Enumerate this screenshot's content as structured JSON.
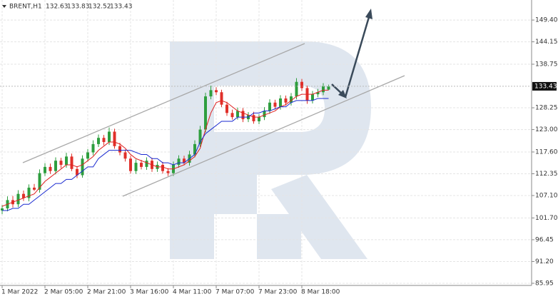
{
  "chart_data": {
    "type": "candlestick",
    "title": "BRENT,H1",
    "header_values": [
      132.63,
      133.83,
      132.52,
      133.43
    ],
    "categories": [
      "1 Mar 2022",
      null,
      null,
      null,
      null,
      null,
      null,
      null,
      "2 Mar 05:00",
      null,
      null,
      null,
      null,
      null,
      null,
      null,
      "2 Mar 21:00",
      null,
      null,
      null,
      null,
      null,
      null,
      null,
      "3 Mar 16:00",
      null,
      null,
      null,
      null,
      null,
      null,
      null,
      "4 Mar 11:00",
      null,
      null,
      null,
      null,
      null,
      null,
      null,
      "7 Mar 07:00",
      null,
      null,
      null,
      null,
      null,
      null,
      null,
      "7 Mar 23:00",
      null,
      null,
      null,
      null,
      null,
      null,
      null,
      "8 Mar 18:00",
      null,
      null,
      null,
      null,
      null
    ],
    "open": [
      103.5,
      104.0,
      106.0,
      105.0,
      107.5,
      106.5,
      109.0,
      108.5,
      112.5,
      114.0,
      113.0,
      115.5,
      114.5,
      116.5,
      113.5,
      112.0,
      116.0,
      117.5,
      119.5,
      121.0,
      120.0,
      122.5,
      119.0,
      117.5,
      116.0,
      113.0,
      115.0,
      114.0,
      115.5,
      113.5,
      114.5,
      113.0,
      112.5,
      114.5,
      116.0,
      115.0,
      117.0,
      119.5,
      123.0,
      131.0,
      132.5,
      132.0,
      129.0,
      127.0,
      126.0,
      127.5,
      125.5,
      126.5,
      125.0,
      126.0,
      127.5,
      129.5,
      128.5,
      130.5,
      129.5,
      131.0,
      134.5,
      133.0,
      130.0,
      131.5,
      132.0,
      132.63
    ],
    "high": [
      104.8,
      106.9,
      107.0,
      108.4,
      108.3,
      109.8,
      109.9,
      113.4,
      114.9,
      114.8,
      116.3,
      116.2,
      117.4,
      117.2,
      114.2,
      116.8,
      118.3,
      120.4,
      121.8,
      121.7,
      123.5,
      123.2,
      119.8,
      118.2,
      116.7,
      115.8,
      115.7,
      116.3,
      116.2,
      115.3,
      115.2,
      113.7,
      115.3,
      116.8,
      116.7,
      117.9,
      120.4,
      123.9,
      131.9,
      133.6,
      133.2,
      132.6,
      129.7,
      127.8,
      128.3,
      128.2,
      127.2,
      127.3,
      126.7,
      128.4,
      130.3,
      130.2,
      131.3,
      131.2,
      131.8,
      135.4,
      135.2,
      133.6,
      132.3,
      132.8,
      134.2,
      133.83
    ],
    "low": [
      102.6,
      103.3,
      104.2,
      104.3,
      105.8,
      105.7,
      108.2,
      107.8,
      111.8,
      112.3,
      112.2,
      113.7,
      113.8,
      113.0,
      111.3,
      111.4,
      115.3,
      116.8,
      118.8,
      119.2,
      119.3,
      118.4,
      116.8,
      115.3,
      112.4,
      112.3,
      113.4,
      113.3,
      112.8,
      112.8,
      112.4,
      111.8,
      111.8,
      113.8,
      114.4,
      114.3,
      116.3,
      118.8,
      122.3,
      130.3,
      131.3,
      128.4,
      126.3,
      125.4,
      125.4,
      124.8,
      124.8,
      124.4,
      124.3,
      125.3,
      126.8,
      127.8,
      127.8,
      128.8,
      128.8,
      130.3,
      132.3,
      129.2,
      129.3,
      130.8,
      131.3,
      132.52
    ],
    "close": [
      104.0,
      106.0,
      105.0,
      107.5,
      106.5,
      109.0,
      108.5,
      112.5,
      114.0,
      113.0,
      115.5,
      114.5,
      116.5,
      113.5,
      112.0,
      116.0,
      117.5,
      119.5,
      121.0,
      120.0,
      122.5,
      119.0,
      117.5,
      116.0,
      113.0,
      115.0,
      114.0,
      115.5,
      113.5,
      114.5,
      113.0,
      112.5,
      114.5,
      116.0,
      115.0,
      117.0,
      119.5,
      123.0,
      131.0,
      132.5,
      132.0,
      129.0,
      127.0,
      126.0,
      127.5,
      125.5,
      126.5,
      125.0,
      126.0,
      127.5,
      129.5,
      128.5,
      130.5,
      129.5,
      131.0,
      134.5,
      133.0,
      130.0,
      131.5,
      132.0,
      133.5,
      133.43
    ],
    "up_color": "#2e9e3e",
    "down_color": "#e0302a",
    "series": [
      {
        "color": "#e02020",
        "values": [
          104.5,
          105,
          105.5,
          106,
          106.5,
          107,
          107.5,
          109,
          110.5,
          111.5,
          112.5,
          113.5,
          114.5,
          114.5,
          114,
          114.5,
          115.5,
          116.5,
          118,
          119,
          120,
          120,
          119.5,
          118.5,
          117,
          116,
          115.5,
          115,
          114.5,
          114,
          114,
          113.5,
          113.5,
          114,
          114.5,
          115.5,
          116.5,
          118.5,
          123,
          127,
          129.5,
          130,
          129.5,
          128.5,
          127.5,
          127,
          126.5,
          126,
          126,
          126.5,
          127,
          127.5,
          128.5,
          129,
          130,
          131,
          131.5,
          131.5,
          131.5,
          132,
          132.5,
          132.5
        ]
      },
      {
        "color": "#1a2ad0",
        "values": [
          103.5,
          103.5,
          104,
          104,
          105,
          105,
          106,
          107,
          108,
          109,
          110,
          110,
          111,
          111,
          112,
          113,
          114,
          114,
          116,
          117,
          118,
          118,
          118,
          118,
          118,
          117.5,
          117,
          117,
          116,
          116,
          115,
          115,
          114.5,
          115,
          115,
          116,
          117,
          120,
          122,
          123,
          124,
          125,
          125,
          125,
          126,
          126,
          126,
          127,
          127,
          127.5,
          127.5,
          128,
          128.5,
          128.5,
          129.5,
          130,
          130,
          130,
          130,
          130.5,
          130.5,
          130.5
        ]
      }
    ],
    "last_price": 133.43,
    "ylim": [
      85.43,
      154.23
    ],
    "yticks": [
      85.95,
      {
        "value": 91.2,
        "label": "91.20"
      },
      96.45,
      {
        "value": 101.7,
        "label": "101.70"
      },
      {
        "value": 107.1,
        "label": "107.10"
      },
      112.35,
      {
        "value": 117.6,
        "label": "117.60"
      },
      {
        "value": 123,
        "label": "123.00"
      },
      128.25,
      138.75,
      144.15,
      {
        "value": 149.4,
        "label": "149.40"
      }
    ],
    "grid": true
  }
}
